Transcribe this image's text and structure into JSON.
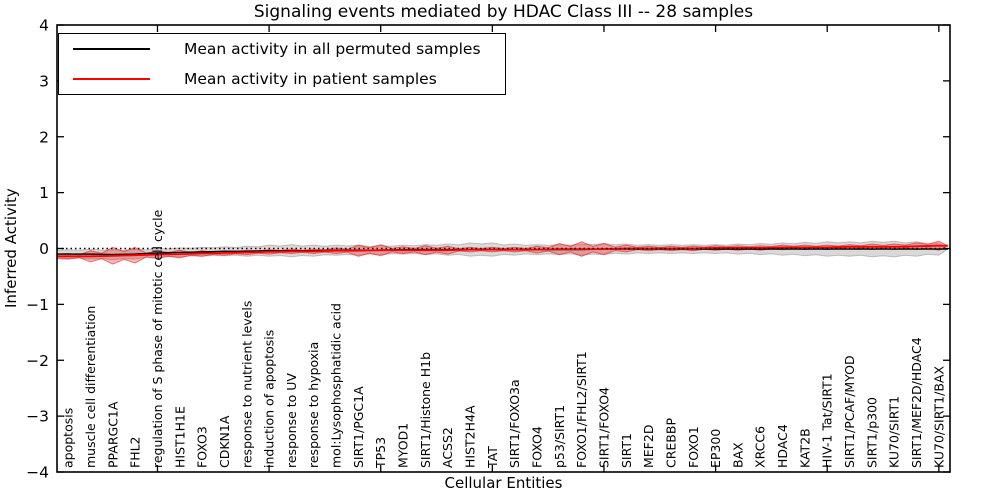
{
  "chart_data": {
    "type": "violin",
    "title": "Signaling events mediated by HDAC Class III -- 28 samples",
    "sample_count": 28,
    "xlabel": "Cellular Entities",
    "ylabel": "Inferred Activity",
    "ylim": [
      -4,
      4
    ],
    "yticks": [
      4,
      3,
      2,
      1,
      0,
      -1,
      -2,
      -3,
      -4
    ],
    "ytick_labels": [
      "4",
      "3",
      "2",
      "1",
      "0",
      "−1",
      "−2",
      "−3",
      "−4"
    ],
    "xticks_major": [
      5,
      10,
      15,
      20,
      25,
      30,
      35,
      40
    ],
    "grid": false,
    "legend": {
      "position": "upper left",
      "entries": [
        {
          "label": "Mean activity in all permuted samples",
          "color": "#000000"
        },
        {
          "label": "Mean activity in patient samples",
          "color": "#ff0000"
        }
      ]
    },
    "zero_line": {
      "y": 0,
      "style": "dotted",
      "color": "#000000"
    },
    "categories": [
      "apoptosis",
      "muscle cell differentiation",
      "PPARGC1A",
      "FHL2",
      "regulation of S phase of mitotic cell cycle",
      "HIST1H1E",
      "FOXO3",
      "CDKN1A",
      "response to nutrient levels",
      "induction of apoptosis",
      "response to UV",
      "response to hypoxia",
      "mol:Lysophosphatidic acid",
      "SIRT1/PGC1A",
      "TP53",
      "MYOD1",
      "SIRT1/Histone H1b",
      "ACSS2",
      "HIST2H4A",
      "TAT",
      "SIRT1/FOXO3a",
      "FOXO4",
      "p53/SIRT1",
      "FOXO1/FHL2/SIRT1",
      "SIRT1/FOXO4",
      "SIRT1",
      "MEF2D",
      "CREBBP",
      "FOXO1",
      "EP300",
      "BAX",
      "XRCC6",
      "HDAC4",
      "KAT2B",
      "HIV-1 Tat/SIRT1",
      "SIRT1/PCAF/MYOD",
      "SIRT1/p300",
      "KU70/SIRT1",
      "SIRT1/MEF2D/HDAC4",
      "KU70/SIRT1/BAX"
    ],
    "series": [
      {
        "name": "Mean activity in all permuted samples",
        "kind": "band+line",
        "line_color": "#000000",
        "fill_color": "rgba(120,120,120,0.28)",
        "edge_color": "rgba(100,100,100,0.35)",
        "mean": [
          -0.1,
          -0.1,
          -0.11,
          -0.1,
          -0.08,
          -0.07,
          -0.06,
          -0.05,
          -0.05,
          -0.04,
          -0.04,
          -0.04,
          -0.03,
          -0.03,
          -0.03,
          -0.02,
          -0.02,
          -0.02,
          -0.02,
          -0.02,
          -0.02,
          -0.02,
          -0.02,
          -0.02,
          -0.01,
          -0.01,
          -0.01,
          -0.01,
          -0.01,
          -0.01,
          -0.01,
          -0.01,
          -0.01,
          -0.01,
          -0.01,
          -0.01,
          -0.01,
          -0.01,
          -0.01,
          -0.01
        ],
        "halfwidth": [
          0.08,
          0.09,
          0.09,
          0.09,
          0.08,
          0.08,
          0.08,
          0.08,
          0.09,
          0.1,
          0.11,
          0.1,
          0.09,
          0.09,
          0.08,
          0.08,
          0.09,
          0.1,
          0.12,
          0.12,
          0.1,
          0.09,
          0.09,
          0.1,
          0.1,
          0.09,
          0.08,
          0.08,
          0.08,
          0.08,
          0.09,
          0.1,
          0.11,
          0.12,
          0.13,
          0.13,
          0.14,
          0.14,
          0.13,
          0.11
        ]
      },
      {
        "name": "Mean activity in patient samples",
        "kind": "band+line",
        "line_color": "#ff0000",
        "fill_color": "rgba(255,0,0,0.28)",
        "edge_color": "rgba(225,0,0,0.50)",
        "mean": [
          -0.14,
          -0.14,
          -0.13,
          -0.12,
          -0.11,
          -0.1,
          -0.09,
          -0.08,
          -0.07,
          -0.06,
          -0.05,
          -0.05,
          -0.04,
          -0.04,
          -0.03,
          -0.03,
          -0.03,
          -0.03,
          -0.02,
          -0.02,
          -0.02,
          -0.02,
          -0.01,
          -0.01,
          -0.01,
          0.0,
          0.0,
          0.0,
          0.0,
          0.01,
          0.01,
          0.01,
          0.02,
          0.02,
          0.02,
          0.03,
          0.03,
          0.03,
          0.04,
          0.05
        ],
        "halfwidth": [
          0.05,
          0.1,
          0.15,
          0.14,
          0.07,
          0.07,
          0.05,
          0.04,
          0.04,
          0.04,
          0.04,
          0.04,
          0.05,
          0.1,
          0.1,
          0.06,
          0.08,
          0.07,
          0.04,
          0.04,
          0.04,
          0.06,
          0.1,
          0.13,
          0.1,
          0.06,
          0.04,
          0.04,
          0.04,
          0.04,
          0.04,
          0.04,
          0.04,
          0.04,
          0.04,
          0.04,
          0.05,
          0.05,
          0.06,
          0.08
        ]
      }
    ]
  }
}
